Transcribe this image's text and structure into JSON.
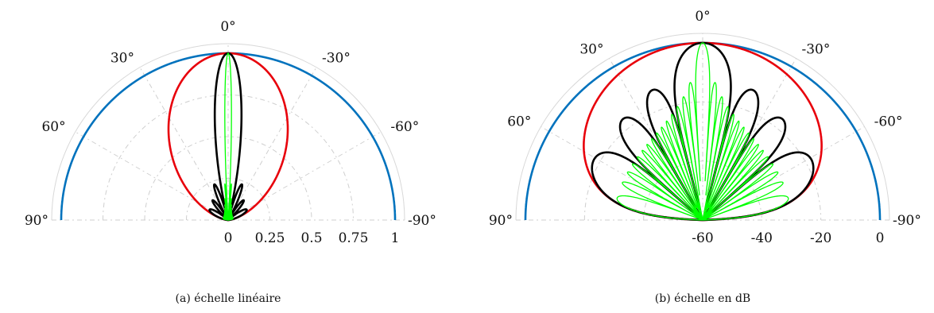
{
  "chart_data": [
    {
      "type": "polar-line",
      "panel": "a",
      "caption": "(a) échelle linéaire",
      "angle_range_deg": [
        -90,
        90
      ],
      "angle_ticks": [
        "90°",
        "60°",
        "30°",
        "0°",
        "-30°",
        "-60°",
        "-90°"
      ],
      "angle_values": [
        90,
        60,
        30,
        0,
        -30,
        -60,
        -90
      ],
      "radial_range": [
        0,
        1
      ],
      "radial_ticks": [
        "0",
        "0.25",
        "0.5",
        "0.75",
        "1"
      ],
      "radial_values": [
        0,
        0.25,
        0.5,
        0.75,
        1
      ],
      "series": [
        {
          "color": "#0072BD",
          "N": 1
        },
        {
          "color": "#E8000B",
          "N": 2
        },
        {
          "color": "#000000",
          "N": 8
        },
        {
          "color": "#00FF00",
          "N": 32
        }
      ]
    },
    {
      "type": "polar-line",
      "panel": "b",
      "caption": "(b) échelle en dB",
      "angle_range_deg": [
        -90,
        90
      ],
      "angle_ticks": [
        "90°",
        "60°",
        "30°",
        "0°",
        "-30°",
        "-60°",
        "-90°"
      ],
      "angle_values": [
        90,
        60,
        30,
        0,
        -30,
        -60,
        -90
      ],
      "radial_range": [
        -60,
        0
      ],
      "radial_ticks": [
        "-60",
        "-40",
        "-20",
        "0"
      ],
      "radial_values": [
        -60,
        -40,
        -20,
        0
      ],
      "series": [
        {
          "color": "#0072BD",
          "N": 1
        },
        {
          "color": "#E8000B",
          "N": 2
        },
        {
          "color": "#000000",
          "N": 8
        },
        {
          "color": "#00FF00",
          "N": 32
        }
      ]
    }
  ]
}
